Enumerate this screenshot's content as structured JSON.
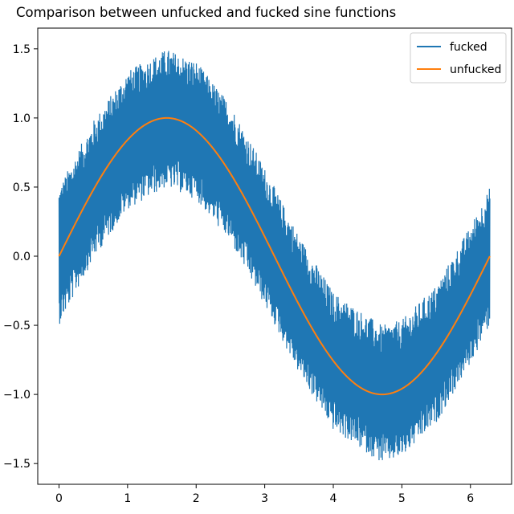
{
  "chart_data": {
    "type": "line",
    "title": "Comparison between unfucked and fucked sine functions",
    "xlabel": "",
    "ylabel": "",
    "xlim": [
      -0.31,
      6.6
    ],
    "ylim": [
      -1.65,
      1.65
    ],
    "x_ticks": [
      0,
      1,
      2,
      3,
      4,
      5,
      6
    ],
    "x_tick_labels": [
      "0",
      "1",
      "2",
      "3",
      "4",
      "5",
      "6"
    ],
    "y_ticks": [
      -1.5,
      -1.0,
      -0.5,
      0.0,
      0.5,
      1.0,
      1.5
    ],
    "y_tick_labels": [
      "−1.5",
      "−1.0",
      "−0.5",
      "0.0",
      "0.5",
      "1.0",
      "1.5"
    ],
    "grid": false,
    "legend_position": "top-right",
    "x_range": [
      0,
      6.2832
    ],
    "series": [
      {
        "name": "fucked",
        "color": "#1f77b4",
        "description_values": "sin(x) plus high-frequency noise of amplitude ~0.5",
        "x": [
          0,
          0.5,
          1.0,
          1.5708,
          2.0,
          2.5,
          3.0,
          3.5,
          4.0,
          4.7124,
          5.0,
          5.5,
          6.0,
          6.2832
        ],
        "upper": [
          0.5,
          0.98,
          1.34,
          1.5,
          1.41,
          1.1,
          0.64,
          0.15,
          -0.26,
          -0.5,
          -0.46,
          -0.21,
          0.22,
          0.5
        ],
        "lower": [
          -0.5,
          -0.02,
          0.34,
          0.5,
          0.41,
          0.1,
          -0.36,
          -0.85,
          -1.26,
          -1.5,
          -1.46,
          -1.21,
          -0.78,
          -0.5
        ]
      },
      {
        "name": "unfucked",
        "color": "#ff7f0e",
        "x": [
          0,
          0.5,
          1.0,
          1.5708,
          2.0,
          2.5,
          3.0,
          3.5,
          4.0,
          4.7124,
          5.0,
          5.5,
          6.0,
          6.2832
        ],
        "y": [
          0.0,
          0.479,
          0.841,
          1.0,
          0.909,
          0.598,
          0.141,
          -0.351,
          -0.757,
          -1.0,
          -0.959,
          -0.706,
          -0.279,
          0.0
        ]
      }
    ]
  }
}
